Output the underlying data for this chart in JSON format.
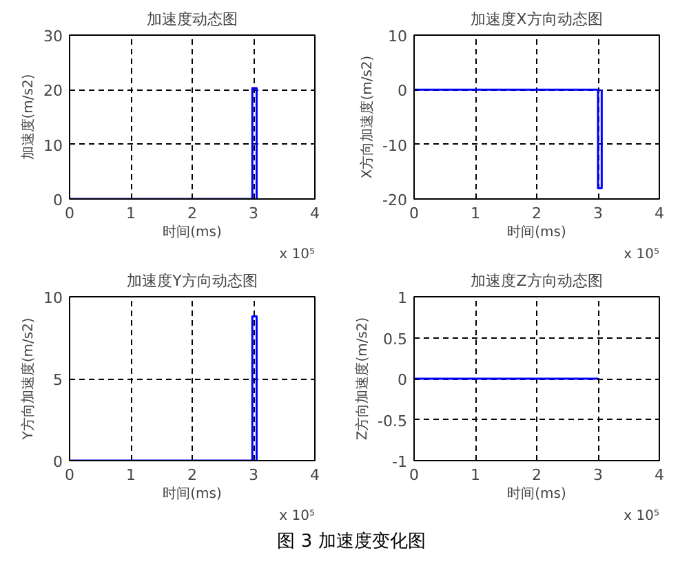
{
  "chart_data": [
    {
      "type": "line",
      "title": "加速度动态图",
      "xlabel": "时间(ms)",
      "ylabel": "加速度(m/s2)",
      "x": [
        0,
        2.98,
        2.98,
        3.05,
        3.05
      ],
      "series": [
        {
          "color": "#0000ff",
          "values": [
            0,
            0,
            20.3,
            20.3,
            0
          ]
        }
      ],
      "xlim": [
        0,
        4
      ],
      "xticks": [
        0,
        1,
        2,
        3,
        4
      ],
      "ylim": [
        0,
        30
      ],
      "yticks": [
        0,
        10,
        20,
        30
      ],
      "grid": true,
      "line_style": "solid",
      "annotations": [
        "x 10⁵"
      ]
    },
    {
      "type": "line",
      "title": "加速度X方向动态图",
      "xlabel": "时间(ms)",
      "ylabel": "X方向加速度(m/s2)",
      "x": [
        0,
        3.0,
        3.0,
        3.06,
        3.06
      ],
      "series": [
        {
          "color": "#0000ff",
          "values": [
            0,
            0,
            -18,
            -18,
            0
          ]
        }
      ],
      "xlim": [
        0,
        4
      ],
      "xticks": [
        0,
        1,
        2,
        3,
        4
      ],
      "ylim": [
        -20,
        10
      ],
      "yticks": [
        -20,
        -10,
        0,
        10
      ],
      "grid": true,
      "line_style": "solid",
      "annotations": [
        "x 10⁵"
      ]
    },
    {
      "type": "line",
      "title": "加速度Y方向动态图",
      "xlabel": "时间(ms)",
      "ylabel": "Y方向加速度(m/s2)",
      "x": [
        0,
        2.98,
        2.98,
        3.05,
        3.05
      ],
      "series": [
        {
          "color": "#0000ff",
          "values": [
            0,
            0,
            8.8,
            8.8,
            0
          ]
        }
      ],
      "xlim": [
        0,
        4
      ],
      "xticks": [
        0,
        1,
        2,
        3,
        4
      ],
      "ylim": [
        0,
        10
      ],
      "yticks": [
        0,
        5,
        10
      ],
      "grid": true,
      "line_style": "solid",
      "annotations": [
        "x 10⁵"
      ]
    },
    {
      "type": "line",
      "title": "加速度Z方向动态图",
      "xlabel": "时间(ms)",
      "ylabel": "Z方向加速度(m/s2)",
      "x": [
        0,
        3.0
      ],
      "series": [
        {
          "color": "#0000ff",
          "values": [
            0,
            0
          ]
        }
      ],
      "xlim": [
        0,
        4
      ],
      "xticks": [
        0,
        1,
        2,
        3,
        4
      ],
      "ylim": [
        -1,
        1
      ],
      "yticks": [
        -1,
        -0.5,
        0,
        0.5,
        1
      ],
      "grid": true,
      "line_style": "solid",
      "annotations": [
        "x 10⁵",
        "图 3 加速度变化图"
      ]
    }
  ]
}
